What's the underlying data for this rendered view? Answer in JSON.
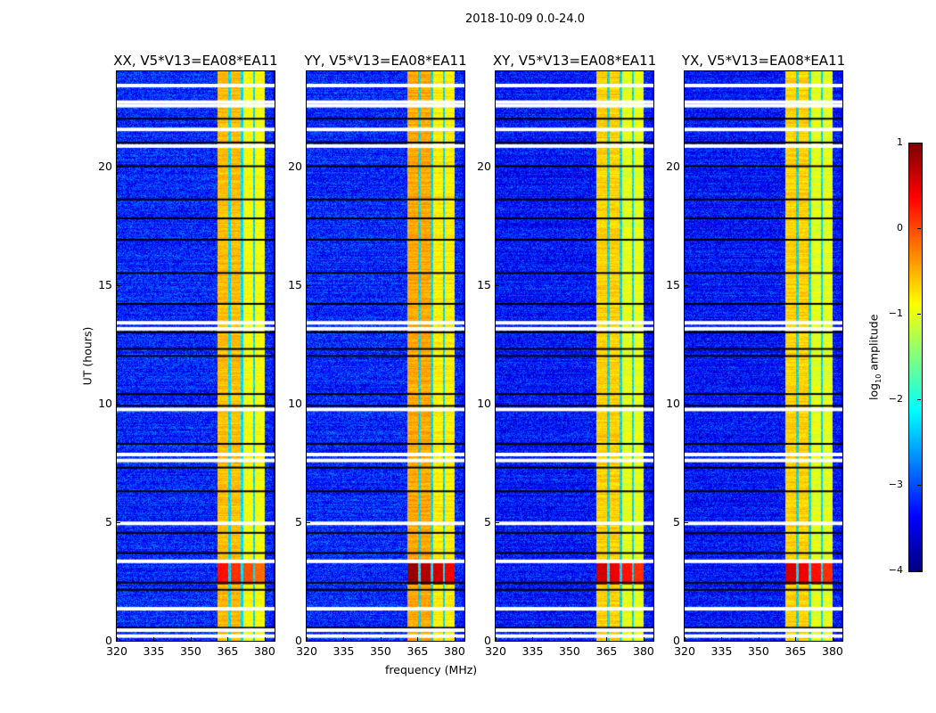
{
  "suptitle": "2018-10-09 0.0-24.0",
  "chart_data": {
    "type": "heatmap",
    "xlabel": "frequency (MHz)",
    "ylabel": "UT (hours)",
    "xlim": [
      320,
      384
    ],
    "ylim": [
      0,
      24
    ],
    "xticks": [
      "320",
      "335",
      "350",
      "365",
      "380"
    ],
    "xtick_values": [
      320,
      335,
      350,
      365,
      380
    ],
    "yticks": [
      "0",
      "5",
      "10",
      "15",
      "20"
    ],
    "ytick_values": [
      0,
      5,
      10,
      15,
      20
    ],
    "colorbar": {
      "label_prefix": "log",
      "label_sub": "10",
      "label_suffix": " amplitude",
      "range": [
        -4,
        1
      ],
      "ticks": [
        "1",
        "0",
        "−1",
        "−2",
        "−3",
        "−4"
      ],
      "tick_values": [
        1,
        0,
        -1,
        -2,
        -3,
        -4
      ],
      "colormap": "jet"
    },
    "panels": [
      {
        "title": "XX, V5*V13=EA08*EA11",
        "background_level": -3.2,
        "band_level": -0.9,
        "peak_level": 0.3
      },
      {
        "title": "YY, V5*V13=EA08*EA11",
        "background_level": -3.2,
        "band_level": -0.8,
        "peak_level": 0.9
      },
      {
        "title": "XY, V5*V13=EA08*EA11",
        "background_level": -3.3,
        "band_level": -1.0,
        "peak_level": 0.6
      },
      {
        "title": "YX, V5*V13=EA08*EA11",
        "background_level": -3.3,
        "band_level": -1.0,
        "peak_level": 0.6
      }
    ],
    "band_MHz": [
      360.5,
      380
    ],
    "subband_edges_MHz": [
      365.5,
      370.5,
      375.5
    ],
    "strong_interval_hours": [
      2.4,
      3.3
    ],
    "flagged_hours_white": [
      0.2,
      0.45,
      1.35,
      3.35,
      4.95,
      7.6,
      7.85,
      9.75,
      13.15,
      13.4,
      20.85,
      21.55,
      22.55,
      22.7,
      23.4
    ],
    "dark_rows_hours": [
      0.55,
      2.15,
      2.45,
      3.7,
      4.55,
      6.3,
      7.3,
      8.3,
      9.9,
      10.4,
      12.0,
      12.3,
      13.0,
      14.2,
      15.5,
      16.9,
      17.8,
      18.6,
      20.0,
      21.0,
      22.0
    ]
  }
}
